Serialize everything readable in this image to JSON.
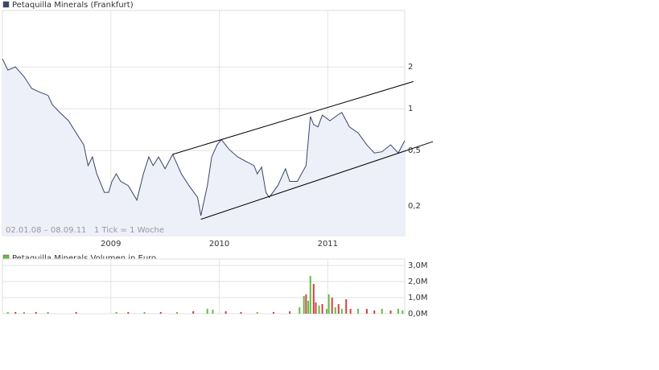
{
  "chart_data": [
    {
      "type": "line",
      "title": "Petaquilla Minerals (Frankfurt)",
      "annotation": "02.01.08 – 08.09.11   1 Tick = 1 Woche",
      "color": "#3a4566",
      "area_color": "#eef0f9",
      "log_scale": true,
      "grid": true,
      "xlim": [
        2008.0,
        2011.71
      ],
      "ylim": [
        0.122,
        5.1
      ],
      "xticks": [
        2009,
        2010,
        2011
      ],
      "yticks": [
        {
          "value": 0.2,
          "label": "0,2"
        },
        {
          "value": 0.5,
          "label": "0,5"
        },
        1,
        2
      ],
      "x": [
        2008.0,
        2008.05,
        2008.12,
        2008.2,
        2008.27,
        2008.35,
        2008.42,
        2008.46,
        2008.53,
        2008.61,
        2008.68,
        2008.75,
        2008.79,
        2008.83,
        2008.87,
        2008.94,
        2008.98,
        2009.01,
        2009.05,
        2009.09,
        2009.16,
        2009.24,
        2009.3,
        2009.35,
        2009.39,
        2009.44,
        2009.5,
        2009.57,
        2009.65,
        2009.72,
        2009.8,
        2009.83,
        2009.89,
        2009.93,
        2009.98,
        2010.02,
        2010.09,
        2010.17,
        2010.24,
        2010.32,
        2010.35,
        2010.39,
        2010.43,
        2010.46,
        2010.54,
        2010.61,
        2010.65,
        2010.72,
        2010.8,
        2010.84,
        2010.87,
        2010.91,
        2010.95,
        2011.02,
        2011.09,
        2011.13,
        2011.2,
        2011.28,
        2011.36,
        2011.43,
        2011.5,
        2011.58,
        2011.65,
        2011.71
      ],
      "values": [
        2.29,
        1.9,
        2.0,
        1.7,
        1.4,
        1.31,
        1.25,
        1.07,
        0.94,
        0.82,
        0.67,
        0.55,
        0.39,
        0.45,
        0.34,
        0.25,
        0.25,
        0.3,
        0.34,
        0.3,
        0.28,
        0.22,
        0.34,
        0.45,
        0.39,
        0.45,
        0.37,
        0.47,
        0.34,
        0.28,
        0.23,
        0.17,
        0.28,
        0.45,
        0.55,
        0.6,
        0.51,
        0.45,
        0.42,
        0.39,
        0.34,
        0.38,
        0.25,
        0.23,
        0.28,
        0.37,
        0.3,
        0.3,
        0.39,
        0.88,
        0.77,
        0.74,
        0.9,
        0.82,
        0.9,
        0.94,
        0.74,
        0.67,
        0.55,
        0.48,
        0.49,
        0.55,
        0.48,
        0.59
      ],
      "trendlines": [
        {
          "x": [
            2009.57,
            2011.79
          ],
          "values": [
            0.47,
            1.57
          ]
        },
        {
          "x": [
            2009.83,
            2011.97
          ],
          "values": [
            0.16,
            0.58
          ]
        }
      ]
    },
    {
      "type": "bar",
      "title": "Petaquilla Minerals Volumen in Euro",
      "legend_color": "#66bb44",
      "grid": true,
      "xlim": [
        2008.0,
        2011.71
      ],
      "ylim": [
        0,
        3400000
      ],
      "xgrid": [
        2009,
        2010,
        2011
      ],
      "yticks": [
        {
          "value": 0,
          "label": "0,0M"
        },
        {
          "value": 1000000,
          "label": "1,0M"
        },
        {
          "value": 2000000,
          "label": "2,0M"
        },
        {
          "value": 3000000,
          "label": "3,0M"
        }
      ],
      "x": [
        2008.05,
        2008.12,
        2008.2,
        2008.31,
        2008.42,
        2008.68,
        2009.05,
        2009.16,
        2009.31,
        2009.46,
        2009.61,
        2009.76,
        2009.89,
        2009.94,
        2010.06,
        2010.2,
        2010.35,
        2010.5,
        2010.65,
        2010.74,
        2010.78,
        2010.8,
        2010.82,
        2010.84,
        2010.87,
        2010.89,
        2010.92,
        2010.95,
        2010.99,
        2011.01,
        2011.04,
        2011.07,
        2011.1,
        2011.13,
        2011.17,
        2011.21,
        2011.28,
        2011.36,
        2011.43,
        2011.5,
        2011.58,
        2011.65,
        2011.69
      ],
      "values": [
        100000,
        100000,
        100000,
        100000,
        100000,
        100000,
        100000,
        100000,
        100000,
        100000,
        100000,
        150000,
        300000,
        250000,
        150000,
        100000,
        100000,
        100000,
        150000,
        400000,
        1100000,
        1200000,
        800000,
        2350000,
        1850000,
        700000,
        500000,
        600000,
        300000,
        1200000,
        1000000,
        400000,
        600000,
        300000,
        900000,
        300000,
        300000,
        300000,
        200000,
        300000,
        200000,
        300000,
        200000
      ],
      "colors": [
        "#66bb44",
        "#cc4444",
        "#66bb44",
        "#cc4444",
        "#66bb44",
        "#cc4444",
        "#66bb44",
        "#cc4444",
        "#66bb44",
        "#cc4444",
        "#66bb44",
        "#cc4444",
        "#66bb44",
        "#66bb44",
        "#cc4444",
        "#cc4444",
        "#66bb44",
        "#cc4444",
        "#cc4444",
        "#66bb44",
        "#66bb44",
        "#cc4444",
        "#66bb44",
        "#66bb44",
        "#cc4444",
        "#cc4444",
        "#66bb44",
        "#cc4444",
        "#66bb44",
        "#66bb44",
        "#cc4444",
        "#66bb44",
        "#cc4444",
        "#66bb44",
        "#cc4444",
        "#cc4444",
        "#66bb44",
        "#cc4444",
        "#cc4444",
        "#66bb44",
        "#cc4444",
        "#66bb44",
        "#66bb44"
      ]
    }
  ]
}
